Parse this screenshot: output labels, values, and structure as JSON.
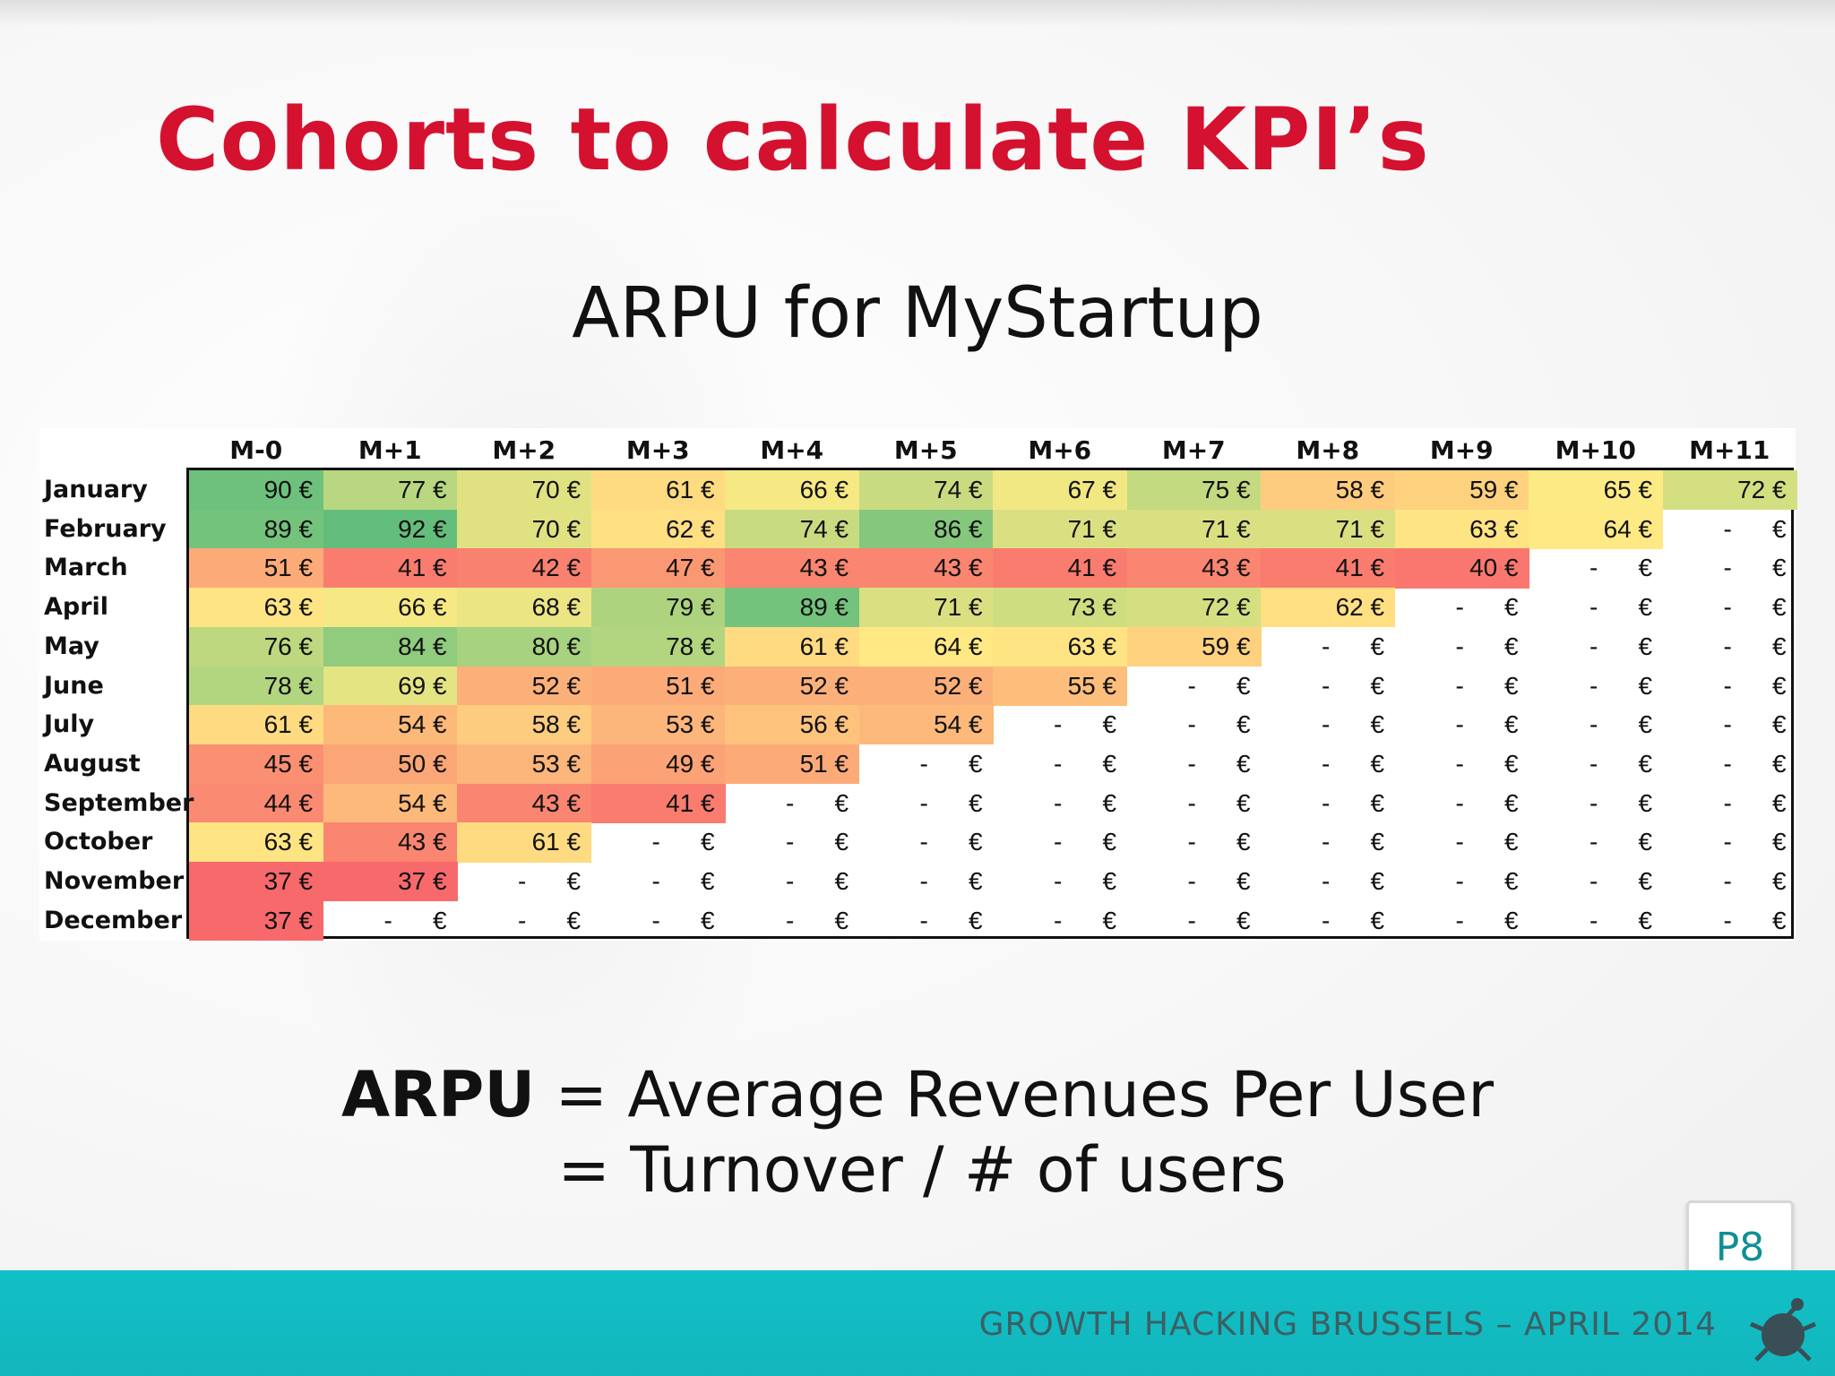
{
  "title": "Cohorts to calculate KPI’s",
  "subtitle": "ARPU for MyStartup",
  "table": {
    "columns": [
      "M-0",
      "M+1",
      "M+2",
      "M+3",
      "M+4",
      "M+5",
      "M+6",
      "M+7",
      "M+8",
      "M+9",
      "M+10",
      "M+11"
    ],
    "rows": [
      {
        "label": "January",
        "values": [
          90,
          77,
          70,
          61,
          66,
          74,
          67,
          75,
          58,
          59,
          65,
          72
        ]
      },
      {
        "label": "February",
        "values": [
          89,
          92,
          70,
          62,
          74,
          86,
          71,
          71,
          71,
          63,
          64,
          null
        ]
      },
      {
        "label": "March",
        "values": [
          51,
          41,
          42,
          47,
          43,
          43,
          41,
          43,
          41,
          40,
          null,
          null
        ]
      },
      {
        "label": "April",
        "values": [
          63,
          66,
          68,
          79,
          89,
          71,
          73,
          72,
          62,
          null,
          null,
          null
        ]
      },
      {
        "label": "May",
        "values": [
          76,
          84,
          80,
          78,
          61,
          64,
          63,
          59,
          null,
          null,
          null,
          null
        ]
      },
      {
        "label": "June",
        "values": [
          78,
          69,
          52,
          51,
          52,
          52,
          55,
          null,
          null,
          null,
          null,
          null
        ]
      },
      {
        "label": "July",
        "values": [
          61,
          54,
          58,
          53,
          56,
          54,
          null,
          null,
          null,
          null,
          null,
          null
        ]
      },
      {
        "label": "August",
        "values": [
          45,
          50,
          53,
          49,
          51,
          null,
          null,
          null,
          null,
          null,
          null,
          null
        ]
      },
      {
        "label": "September",
        "values": [
          44,
          54,
          43,
          41,
          null,
          null,
          null,
          null,
          null,
          null,
          null,
          null
        ]
      },
      {
        "label": "October",
        "values": [
          63,
          43,
          61,
          null,
          null,
          null,
          null,
          null,
          null,
          null,
          null,
          null
        ]
      },
      {
        "label": "November",
        "values": [
          37,
          37,
          null,
          null,
          null,
          null,
          null,
          null,
          null,
          null,
          null,
          null
        ]
      },
      {
        "label": "December",
        "values": [
          37,
          null,
          null,
          null,
          null,
          null,
          null,
          null,
          null,
          null,
          null,
          null
        ]
      }
    ],
    "currency": "€",
    "empty_dash": "-",
    "color_scale": {
      "low": "#f8696b",
      "mid": "#ffeb84",
      "high": "#63be7b",
      "min": 37,
      "max": 92
    }
  },
  "formula": {
    "term": "ARPU",
    "line1_rest": " = Average Revenues Per User",
    "line2": "= Turnover / # of users"
  },
  "page_number": "P8",
  "footer": "GROWTH HACKING BRUSSELS – APRIL 2014",
  "colors": {
    "title": "#d51130",
    "footer_bar": "#13b9bf",
    "page_number": "#0f8f96"
  }
}
